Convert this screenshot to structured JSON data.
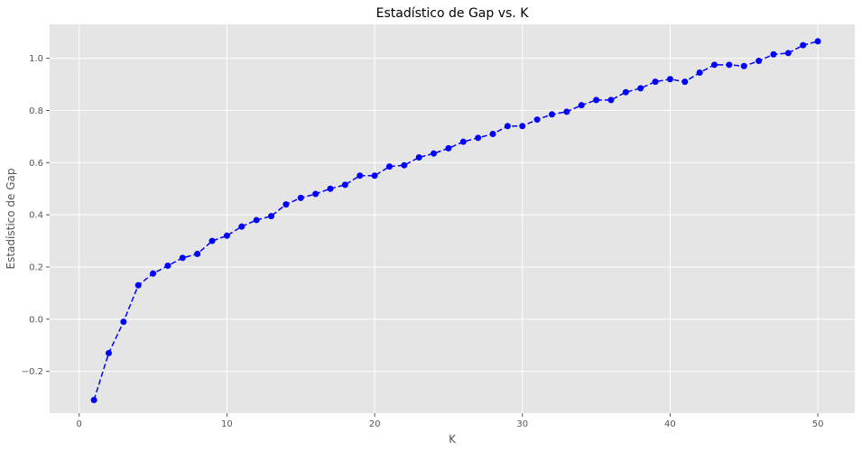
{
  "chart_data": {
    "type": "line",
    "title": "Estadístico de Gap vs. K",
    "xlabel": "K",
    "ylabel": "Estadístico de Gap",
    "xlim": [
      -2,
      52.5
    ],
    "ylim": [
      -0.36,
      1.13
    ],
    "xticks": [
      0,
      10,
      20,
      30,
      40,
      50
    ],
    "yticks": [
      -0.2,
      0.0,
      0.2,
      0.4,
      0.6,
      0.8,
      1.0
    ],
    "xtick_labels": [
      "0",
      "10",
      "20",
      "30",
      "40",
      "50"
    ],
    "ytick_labels": [
      "−0.2",
      "0.0",
      "0.2",
      "0.4",
      "0.6",
      "0.8",
      "1.0"
    ],
    "grid": true,
    "series": [
      {
        "color": "#0000ff",
        "line_style": "dashed",
        "marker": "circle",
        "x": [
          1,
          2,
          3,
          4,
          5,
          6,
          7,
          8,
          9,
          10,
          11,
          12,
          13,
          14,
          15,
          16,
          17,
          18,
          19,
          20,
          21,
          22,
          23,
          24,
          25,
          26,
          27,
          28,
          29,
          30,
          31,
          32,
          33,
          34,
          35,
          36,
          37,
          38,
          39,
          40,
          41,
          42,
          43,
          44,
          45,
          46,
          47,
          48,
          49,
          50
        ],
        "values": [
          -0.31,
          -0.13,
          -0.01,
          0.13,
          0.175,
          0.205,
          0.235,
          0.25,
          0.3,
          0.32,
          0.355,
          0.38,
          0.395,
          0.44,
          0.465,
          0.48,
          0.5,
          0.515,
          0.55,
          0.55,
          0.585,
          0.59,
          0.62,
          0.635,
          0.655,
          0.68,
          0.695,
          0.71,
          0.74,
          0.74,
          0.765,
          0.785,
          0.795,
          0.82,
          0.84,
          0.84,
          0.87,
          0.885,
          0.91,
          0.92,
          0.91,
          0.945,
          0.975,
          0.975,
          0.97,
          0.99,
          1.015,
          1.02,
          1.05,
          1.065
        ]
      }
    ]
  },
  "colors": {
    "plot_background": "#e5e5e5",
    "grid": "#ffffff",
    "series": "#0000ff"
  }
}
